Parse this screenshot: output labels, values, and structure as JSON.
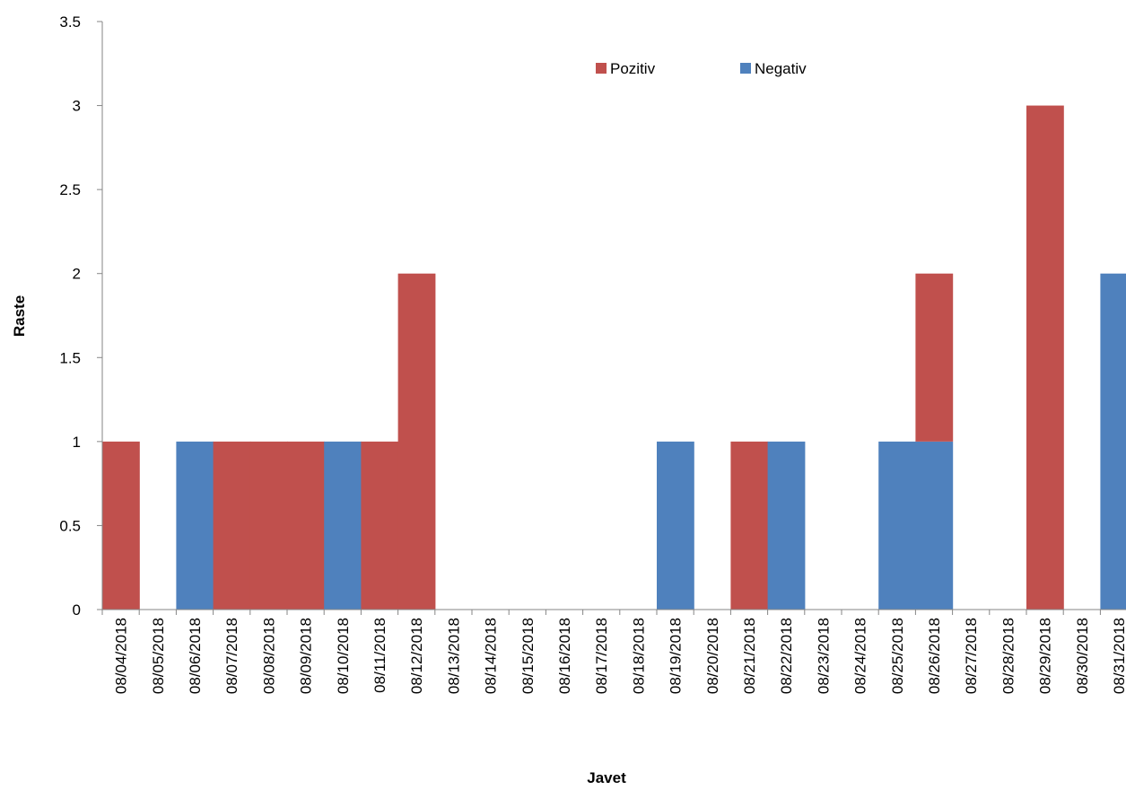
{
  "chart_data": {
    "type": "bar",
    "stacked": true,
    "title": "",
    "xlabel": "Javet",
    "ylabel": "Raste",
    "ylim": [
      0,
      3.5
    ],
    "yticks": [
      "0",
      "0.5",
      "1",
      "1.5",
      "2",
      "2.5",
      "3",
      "3.5"
    ],
    "grid": false,
    "legend_position": "top-right",
    "categories": [
      "08/04/2018",
      "08/05/2018",
      "08/06/2018",
      "08/07/2018",
      "08/08/2018",
      "08/09/2018",
      "08/10/2018",
      "08/11/2018",
      "08/12/2018",
      "08/13/2018",
      "08/14/2018",
      "08/15/2018",
      "08/16/2018",
      "08/17/2018",
      "08/18/2018",
      "08/19/2018",
      "08/20/2018",
      "08/21/2018",
      "08/22/2018",
      "08/23/2018",
      "08/24/2018",
      "08/25/2018",
      "08/26/2018",
      "08/27/2018",
      "08/28/2018",
      "08/29/2018",
      "08/30/2018",
      "08/31/2018"
    ],
    "series": [
      {
        "name": "Negativ",
        "color": "#4F81BD",
        "values": [
          0,
          0,
          1,
          0,
          0,
          0,
          1,
          0,
          0,
          0,
          0,
          0,
          0,
          0,
          0,
          1,
          0,
          0,
          1,
          0,
          0,
          1,
          1,
          0,
          0,
          0,
          0,
          2
        ]
      },
      {
        "name": "Pozitiv",
        "color": "#C0504D",
        "values": [
          1,
          0,
          0,
          1,
          1,
          1,
          0,
          1,
          2,
          0,
          0,
          0,
          0,
          0,
          0,
          0,
          0,
          1,
          0,
          0,
          0,
          0,
          1,
          0,
          0,
          3,
          0,
          0
        ]
      }
    ],
    "legend_order": [
      "Pozitiv",
      "Negativ"
    ]
  }
}
